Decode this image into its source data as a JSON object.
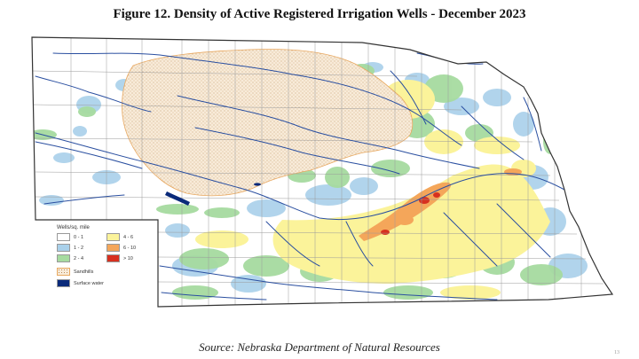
{
  "title": "Figure 12.  Density of Active Registered Irrigation Wells - December 2023",
  "source": "Source: Nebraska Department of Natural Resources",
  "page_number": "13",
  "legend": {
    "title": "Wells/sq. mile",
    "classes": [
      {
        "label": "0 - 1",
        "color": "#ffffff"
      },
      {
        "label": "4 - 6",
        "color": "#fbf39a"
      },
      {
        "label": "1 - 2",
        "color": "#a9d0ea"
      },
      {
        "label": "6 - 10",
        "color": "#f4a65a"
      },
      {
        "label": "2 - 4",
        "color": "#a6dba0"
      },
      {
        "label": "> 10",
        "color": "#d7301f"
      }
    ],
    "sandhills": {
      "label": "Sandhills",
      "color": "#e8a860"
    },
    "surface_water": {
      "label": "Surface water",
      "color": "#0a2a7a"
    }
  },
  "colors": {
    "county_lines": "#9a9a9a",
    "rivers": "#2a4fa0",
    "state_outline": "#333333",
    "sandhills_fill": "#f8ebd9"
  }
}
